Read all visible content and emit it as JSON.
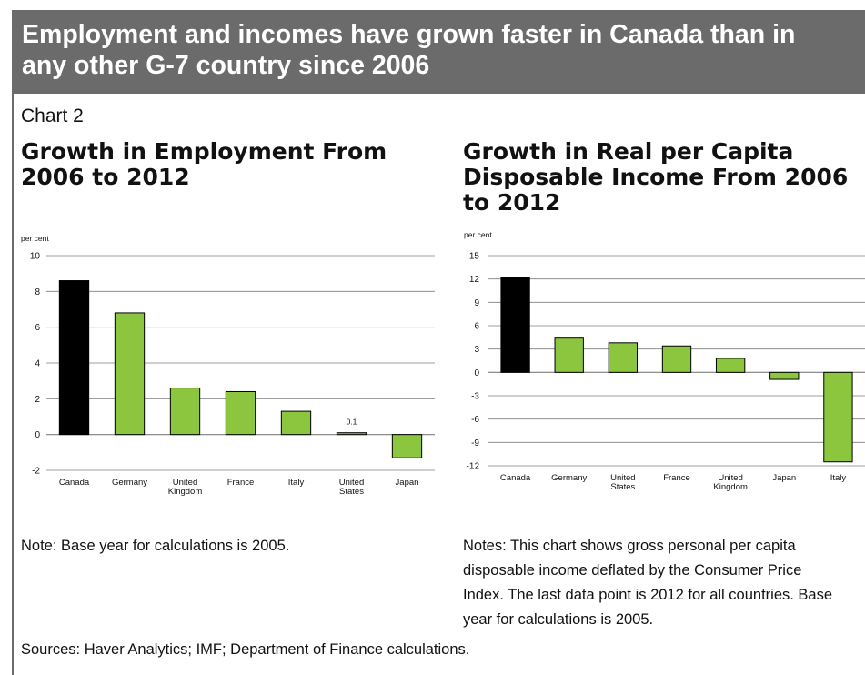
{
  "banner_title": "Employment and incomes have grown faster in Canada than in any other G-7 country since 2006",
  "chart_label": "Chart 2",
  "colors": {
    "banner": "#6b6b6b",
    "canada_bar": "#000000",
    "other_bar": "#8cc63f",
    "grid": "#7f7f7f"
  },
  "chart_data": [
    {
      "type": "bar",
      "title": "Growth in Employment From 2006 to 2012",
      "ylabel": "per cent",
      "ylim": [
        -2,
        10
      ],
      "yticks": [
        -2,
        0,
        2,
        4,
        6,
        8,
        10
      ],
      "categories": [
        "Canada",
        "Germany",
        "United Kingdom",
        "France",
        "Italy",
        "United States",
        "Japan"
      ],
      "category_lines": [
        [
          "Canada"
        ],
        [
          "Germany"
        ],
        [
          "United",
          "Kingdom"
        ],
        [
          "France"
        ],
        [
          "Italy"
        ],
        [
          "United",
          "States"
        ],
        [
          "Japan"
        ]
      ],
      "values": [
        8.6,
        6.8,
        2.6,
        2.4,
        1.3,
        0.1,
        -1.3
      ],
      "highlight": "Canada",
      "data_labels": [
        {
          "category": "United States",
          "text": "0.1"
        }
      ],
      "grid": true
    },
    {
      "type": "bar",
      "title": "Growth in Real per Capita Disposable Income From 2006 to 2012",
      "ylabel": "per cent",
      "ylim": [
        -12,
        15
      ],
      "yticks": [
        -12,
        -9,
        -6,
        -3,
        0,
        3,
        6,
        9,
        12,
        15
      ],
      "categories": [
        "Canada",
        "Germany",
        "United States",
        "France",
        "United Kingdom",
        "Japan",
        "Italy"
      ],
      "category_lines": [
        [
          "Canada"
        ],
        [
          "Germany"
        ],
        [
          "United",
          "States"
        ],
        [
          "France"
        ],
        [
          "United",
          "Kingdom"
        ],
        [
          "Japan"
        ],
        [
          "Italy"
        ]
      ],
      "values": [
        12.2,
        4.4,
        3.8,
        3.4,
        1.8,
        -0.9,
        -11.5
      ],
      "highlight": "Canada",
      "data_labels": [],
      "grid": true
    }
  ],
  "titles": {
    "left": "Growth in Employment From 2006 to 2012",
    "right": "Growth in Real per Capita Disposable Income From 2006 to 2012"
  },
  "notes": {
    "left": "Note: Base year for calculations is 2005.",
    "right": "Notes: This chart shows gross personal per capita disposable income deflated by the Consumer Price Index. The last data point is 2012 for all countries. Base year for calculations is 2005."
  },
  "sources": "Sources: Haver Analytics; IMF; Department of Finance calculations."
}
